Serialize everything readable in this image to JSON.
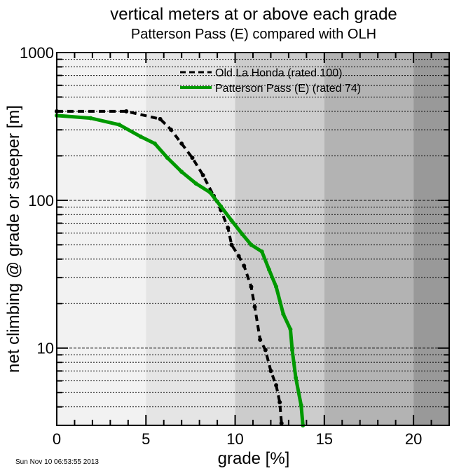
{
  "chart_data": {
    "type": "line",
    "title": "vertical meters at or above each grade",
    "subtitle": "Patterson Pass (E) compared with OLH",
    "xlabel": "grade [%]",
    "ylabel": "net climbing @ grade or steeper [m]",
    "xlim": [
      0,
      22
    ],
    "ylim": [
      3,
      1000
    ],
    "yscale": "log",
    "xticks": [
      0,
      5,
      10,
      15,
      20
    ],
    "xtick_labels": [
      "0",
      "5",
      "10",
      "15",
      "20"
    ],
    "yticks": [
      10,
      100,
      1000
    ],
    "ytick_labels": [
      "10",
      "100",
      "1000"
    ],
    "grid": "horizontal dotted",
    "legend": "top-center",
    "background_bands": [
      {
        "from": 0,
        "to": 5,
        "color": "#f2f2f2"
      },
      {
        "from": 5,
        "to": 10,
        "color": "#e5e5e5"
      },
      {
        "from": 10,
        "to": 15,
        "color": "#cccccc"
      },
      {
        "from": 15,
        "to": 20,
        "color": "#b3b3b3"
      },
      {
        "from": 20,
        "to": 22,
        "color": "#999999"
      }
    ],
    "series": [
      {
        "name": "Old La Honda (rated 100)",
        "color": "#000000",
        "style": "dashed",
        "x": [
          0,
          3.9,
          5.8,
          6.4,
          7.0,
          7.6,
          8.2,
          8.8,
          9.2,
          9.6,
          9.8,
          10.2,
          10.5,
          10.9,
          11.1,
          11.4,
          11.7,
          12.0,
          12.3,
          12.5,
          12.6
        ],
        "y": [
          400,
          400,
          355,
          301,
          242,
          194,
          148,
          107,
          86,
          65,
          50,
          42,
          36,
          26,
          19,
          11.4,
          9.7,
          7.0,
          5.6,
          4.3,
          3.1
        ]
      },
      {
        "name": "Patterson Pass (E) (rated 74)",
        "color": "#009900",
        "style": "solid",
        "x": [
          0,
          1.9,
          3.5,
          4.7,
          5.5,
          6.2,
          7.0,
          7.8,
          8.6,
          9.2,
          9.8,
          10.4,
          10.9,
          11.5,
          11.9,
          12.3,
          12.7,
          13.1,
          13.2,
          13.4,
          13.7,
          13.8
        ],
        "y": [
          375,
          360,
          325,
          270,
          242,
          194,
          156,
          130,
          113,
          91,
          73,
          59,
          50,
          45,
          34,
          26,
          17,
          13.4,
          9.7,
          6.3,
          4.1,
          3.0
        ]
      }
    ]
  },
  "timestamp": "Sun Nov 10 06:53:55 2013"
}
